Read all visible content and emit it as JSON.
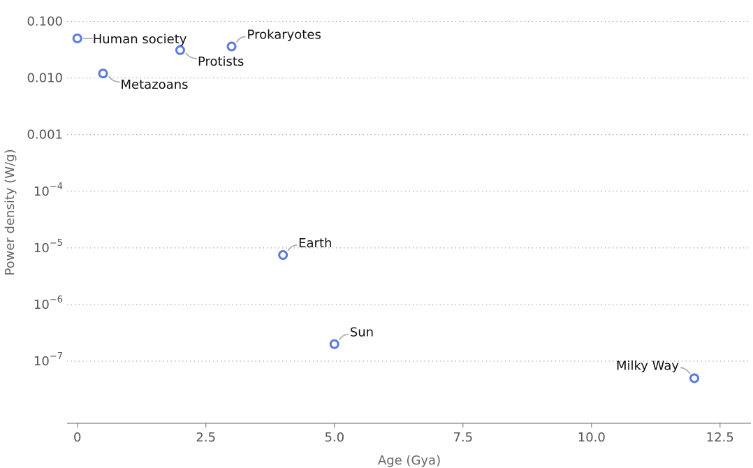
{
  "chart_data": {
    "type": "scatter",
    "title": "",
    "xlabel": "Age (Gya)",
    "ylabel": "Power density (W/g)",
    "x_scale": "linear",
    "y_scale": "log",
    "xlim": [
      -0.2,
      13.1
    ],
    "ylim": [
      8e-09,
      0.16
    ],
    "x_ticks": [
      0,
      2.5,
      5.0,
      7.5,
      10.0,
      12.5
    ],
    "x_tick_labels": [
      "0",
      "2.5",
      "5.0",
      "7.5",
      "10.0",
      "12.5"
    ],
    "y_ticks": [
      {
        "value": 1e-07,
        "base": "10",
        "exp": "−7"
      },
      {
        "value": 1e-06,
        "base": "10",
        "exp": "−6"
      },
      {
        "value": 1e-05,
        "base": "10",
        "exp": "−5"
      },
      {
        "value": 0.0001,
        "base": "10",
        "exp": "−4"
      },
      {
        "value": 0.001,
        "label": "0.001"
      },
      {
        "value": 0.01,
        "label": "0.010"
      },
      {
        "value": 0.1,
        "label": "0.100"
      }
    ],
    "grid": "horizontal dotted",
    "marker_color": "#5b7be0",
    "points": [
      {
        "label": "Human society",
        "x": 0.0,
        "y": 0.05,
        "label_pos": "right"
      },
      {
        "label": "Metazoans",
        "x": 0.5,
        "y": 0.012,
        "label_pos": "lower-right"
      },
      {
        "label": "Protists",
        "x": 2.0,
        "y": 0.031,
        "label_pos": "lower-right"
      },
      {
        "label": "Prokaryotes",
        "x": 3.0,
        "y": 0.036,
        "label_pos": "upper-right"
      },
      {
        "label": "Earth",
        "x": 4.0,
        "y": 7.5e-06,
        "label_pos": "upper-right"
      },
      {
        "label": "Sun",
        "x": 5.0,
        "y": 2e-07,
        "label_pos": "upper-right"
      },
      {
        "label": "Milky Way",
        "x": 12.0,
        "y": 5e-08,
        "label_pos": "upper-left"
      }
    ]
  }
}
